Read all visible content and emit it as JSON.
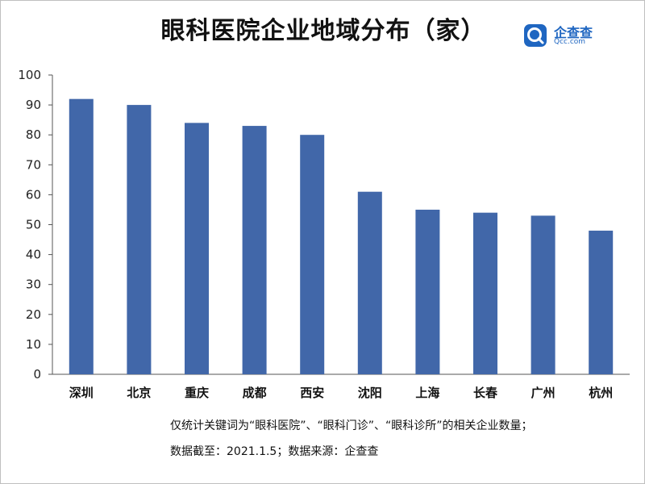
{
  "title": "眼科医院企业地域分布（家）",
  "logo": {
    "name": "企查查",
    "url": "Qcc.com",
    "icon": "qcc-logo-icon",
    "color": "#1f66c1"
  },
  "notes": {
    "line1": "仅统计关键词为“眼科医院”、“眼科门诊”、“眼科诊所”的相关企业数量；",
    "line2": "数据截至：2021.1.5；数据来源：企查查"
  },
  "chart_data": {
    "type": "bar",
    "title": "眼科医院企业地域分布（家）",
    "categories": [
      "深圳",
      "北京",
      "重庆",
      "成都",
      "西安",
      "沈阳",
      "上海",
      "长春",
      "广州",
      "杭州"
    ],
    "values": [
      92,
      90,
      84,
      83,
      80,
      61,
      55,
      54,
      53,
      48
    ],
    "ylim": [
      0,
      100
    ],
    "yticks": [
      0,
      10,
      20,
      30,
      40,
      50,
      60,
      70,
      80,
      90,
      100
    ],
    "grid": false,
    "bar_color": "#4167a9"
  }
}
